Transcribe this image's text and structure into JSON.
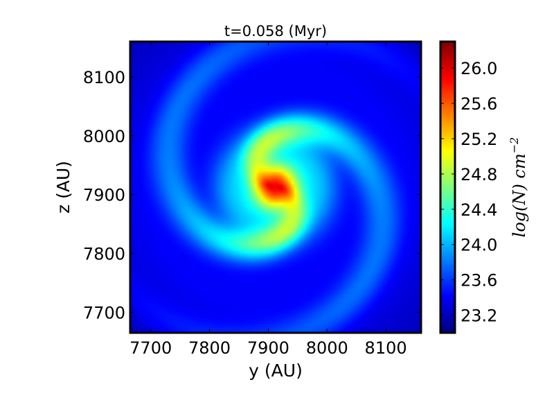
{
  "chart_data": {
    "type": "heatmap",
    "title": "t=0.058 (Myr)",
    "xlabel": "y (AU)",
    "ylabel": "z (AU)",
    "xlim": [
      7665,
      8160
    ],
    "ylim": [
      7665,
      8160
    ],
    "x_ticks": [
      "7700",
      "7800",
      "7900",
      "8000",
      "8100"
    ],
    "x_tick_values": [
      7700,
      7800,
      7900,
      8000,
      8100
    ],
    "y_ticks": [
      "7700",
      "7800",
      "7900",
      "8000",
      "8100"
    ],
    "y_tick_values": [
      7700,
      7800,
      7900,
      8000,
      8100
    ],
    "colormap": "jet",
    "colorbar": {
      "label": "log(N) cm",
      "label_exponent": "−2",
      "range": [
        23.0,
        26.3
      ],
      "ticks": [
        "23.2",
        "23.6",
        "24.0",
        "24.4",
        "24.8",
        "25.2",
        "25.6",
        "26.0"
      ],
      "tick_values": [
        23.2,
        23.6,
        24.0,
        24.4,
        24.8,
        25.2,
        25.6,
        26.0
      ]
    },
    "features": {
      "peak_center": [
        7912,
        7913
      ],
      "peak_value": 26.1,
      "background_value": 23.4,
      "spiral_arms": 2
    },
    "grid": false,
    "legend": "none"
  }
}
